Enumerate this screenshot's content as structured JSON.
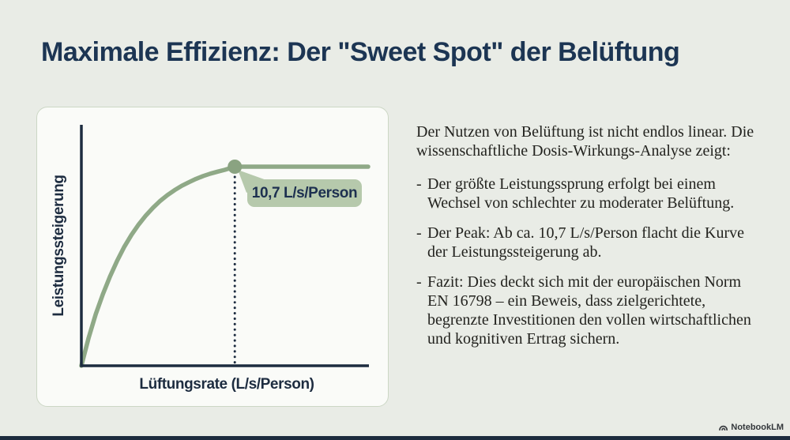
{
  "slide": {
    "title": "Maximale Effizienz: Der \"Sweet Spot\" der Belüftung",
    "intro": "Der Nutzen von Belüftung ist nicht endlos linear. Die wissenschaftliche Dosis-Wirkungs-Analyse zeigt:",
    "bullets": [
      {
        "text": "Der größte Leistungssprung erfolgt bei einem Wechsel von schlechter zu moderater Belüftung."
      },
      {
        "text": "Der Peak: Ab ca. 10,7 L/s/Person flacht die Kurve der Leistungssteigerung ab."
      },
      {
        "text": "Fazit: Dies deckt sich mit der europäischen Norm EN 16798 – ein Beweis, dass zielgerichtete, begrenzte Investitionen den vollen wirtschaftlichen und kognitiven Ertrag sichern."
      }
    ],
    "bullet_marker": "-",
    "footer_brand": "NotebookLM"
  },
  "chart_data": {
    "type": "line",
    "title": "",
    "xlabel": "Lüftungsrate (L/s/Person)",
    "ylabel": "Leistungssteigerung",
    "xlim": [
      0,
      20
    ],
    "ylim": [
      0,
      100
    ],
    "grid": false,
    "axis_ticks": "none (conceptual axes without tick labels)",
    "series": [
      {
        "name": "Leistungssteigerung",
        "x": [
          0,
          0.5,
          1,
          1.5,
          2,
          2.5,
          3,
          3.5,
          4,
          4.5,
          5,
          5.5,
          6,
          6.5,
          7,
          7.5,
          8,
          8.5,
          9,
          9.5,
          10,
          10.7,
          12,
          14,
          16,
          18,
          20
        ],
        "y": [
          0,
          13.9,
          25.9,
          35.9,
          44.9,
          52.8,
          59.8,
          65.8,
          71.0,
          75.5,
          79.4,
          82.8,
          85.7,
          88.2,
          90.4,
          92.2,
          93.9,
          95.3,
          96.5,
          97.5,
          98.4,
          100,
          100,
          100,
          100,
          100,
          100
        ]
      }
    ],
    "annotation": {
      "label": "10,7 L/s/Person",
      "x": 10.7,
      "y": 100,
      "marker": "dot",
      "guide": "dotted-vertical-line-to-x-axis"
    }
  },
  "colors": {
    "background": "#e9ece6",
    "title_navy": "#1c3553",
    "axis_navy": "#1d2c40",
    "curve_sage": "#8fa987",
    "marker_sage": "#8aa381",
    "callout_bg": "#b6c9ac",
    "card_bg": "#fafbf8",
    "card_border": "#ccd7c5",
    "body_text": "#23231f",
    "bottom_bar": "#1d2c3e"
  }
}
